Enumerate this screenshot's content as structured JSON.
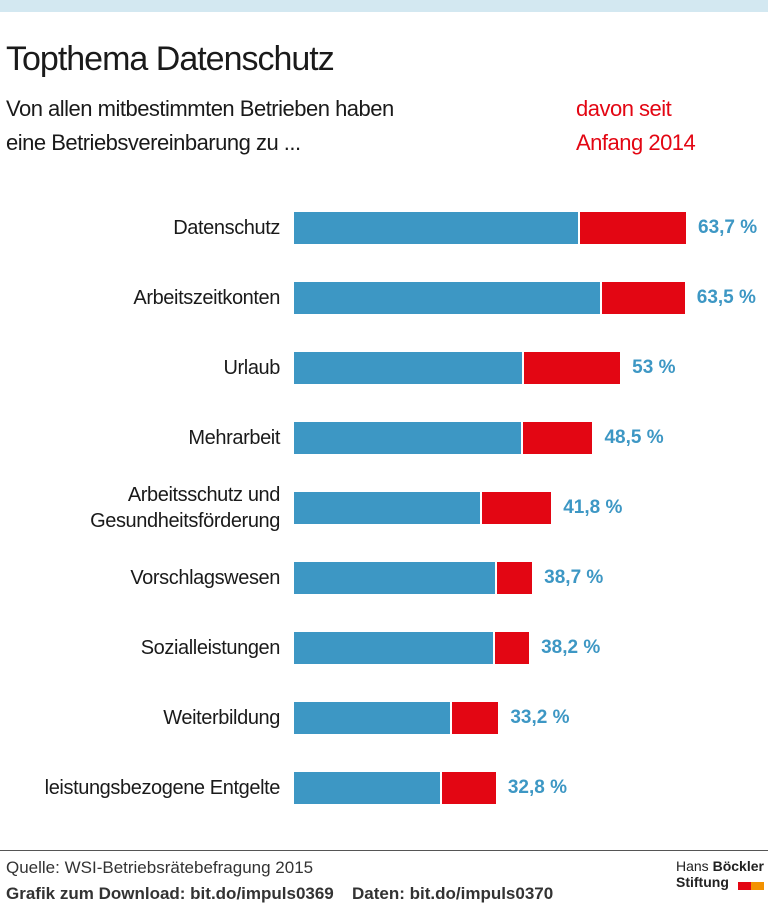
{
  "chart_data": {
    "type": "stacked-bar",
    "title": "Topthema Datenschutz",
    "subtitle": "Von allen mitbestimmten Betrieben haben eine Betriebsvereinbarung zu ...",
    "categories": [
      "Datenschutz",
      "Arbeitszeitkonten",
      "Urlaub",
      "Mehrarbeit",
      "Arbeitsschutz und Gesundheitsförderung",
      "Vorschlagswesen",
      "Sozialleistungen",
      "Weiterbildung",
      "leistungsbezogene Entgelte"
    ],
    "series": [
      {
        "color": "#3d97c4",
        "values": [
          46.1,
          49.7,
          37.0,
          36.9,
          30.2,
          32.7,
          32.3,
          25.4,
          23.7
        ]
      },
      {
        "name": "davon seit Anfang 2014",
        "color": "#e30613",
        "values": [
          17.6,
          13.8,
          16.0,
          11.6,
          11.6,
          6.0,
          5.9,
          7.8,
          9.1
        ]
      }
    ],
    "totals": [
      63.7,
      63.5,
      53,
      48.5,
      41.8,
      38.7,
      38.2,
      33.2,
      32.8
    ],
    "total_labels": [
      "63,7 %",
      "63,5 %",
      "53 %",
      "48,5 %",
      "41,8 %",
      "38,7 %",
      "38,2 %",
      "33,2 %",
      "32,8 %"
    ],
    "total_label_color": "#3d97c4",
    "source": "Quelle: WSI-Betriebsrätebefragung 2015",
    "download": "Grafik zum Download: bit.do/impuls0369",
    "data_link": "Daten: bit.do/impuls0370",
    "logo": [
      "Hans",
      "Böckler",
      "Stiftung"
    ]
  }
}
